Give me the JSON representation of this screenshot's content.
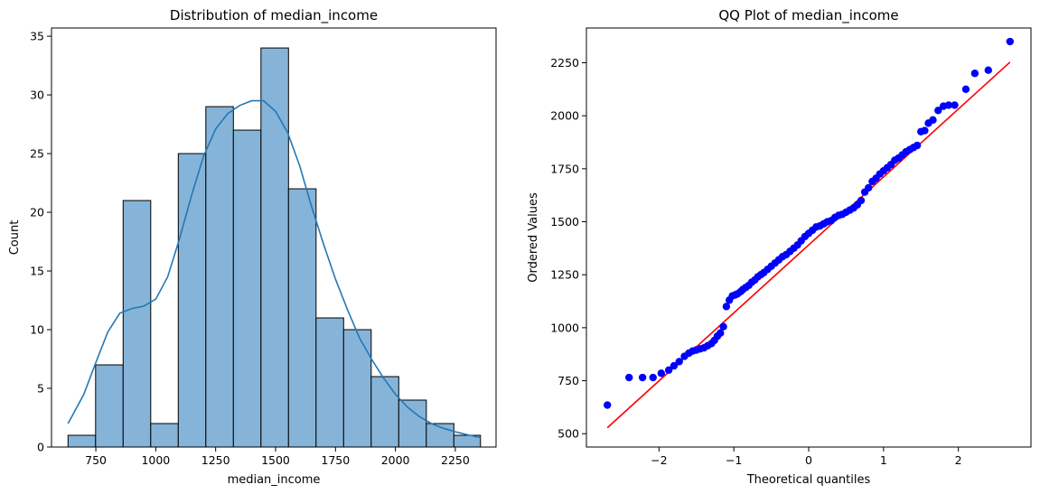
{
  "chart_data": [
    {
      "type": "bar",
      "title": "Distribution of median_income",
      "xlabel": "median_income",
      "ylabel": "Count",
      "xlim": [
        565,
        2420
      ],
      "ylim": [
        0,
        35.7
      ],
      "xticks": [
        750,
        1000,
        1250,
        1500,
        1750,
        2000,
        2250
      ],
      "yticks": [
        0,
        5,
        10,
        15,
        20,
        25,
        30,
        35
      ],
      "bin_edges": [
        634,
        749,
        864,
        979,
        1094,
        1209,
        1324,
        1439,
        1554,
        1669,
        1784,
        1899,
        2014,
        2129,
        2244,
        2355
      ],
      "counts": [
        1,
        7,
        21,
        2,
        25,
        29,
        27,
        34,
        22,
        11,
        10,
        6,
        4,
        2,
        1
      ],
      "kde": {
        "x": [
          634,
          700,
          750,
          800,
          850,
          900,
          950,
          1000,
          1050,
          1100,
          1150,
          1200,
          1250,
          1300,
          1350,
          1400,
          1450,
          1500,
          1550,
          1600,
          1650,
          1700,
          1750,
          1800,
          1850,
          1900,
          1950,
          2000,
          2050,
          2100,
          2150,
          2200,
          2250,
          2300,
          2355
        ],
        "y": [
          2.0,
          4.5,
          7.2,
          9.8,
          11.4,
          11.8,
          12.0,
          12.6,
          14.5,
          17.8,
          21.5,
          24.8,
          27.1,
          28.4,
          29.1,
          29.5,
          29.5,
          28.6,
          26.8,
          24.0,
          20.5,
          17.3,
          14.3,
          11.7,
          9.3,
          7.5,
          5.9,
          4.5,
          3.4,
          2.6,
          2.0,
          1.6,
          1.3,
          1.05,
          0.8
        ]
      },
      "colors": {
        "bar_fill": "#86b4d8",
        "bar_edge": "#000000",
        "kde": "#2378b5"
      }
    },
    {
      "type": "scatter",
      "title": "QQ Plot of median_income",
      "xlabel": "Theoretical quantiles",
      "ylabel": "Ordered Values",
      "xlim": [
        -2.97,
        2.97
      ],
      "ylim": [
        437,
        2414
      ],
      "xticks": [
        -2,
        -1,
        0,
        1,
        2
      ],
      "yticks": [
        500,
        750,
        1000,
        1250,
        1500,
        1750,
        2000,
        2250
      ],
      "fit_line": {
        "x": [
          -2.69,
          2.69
        ],
        "y": [
          528,
          2253
        ]
      },
      "points": {
        "x": [
          -2.69,
          -2.4,
          -2.22,
          -2.08,
          -1.97,
          -1.87,
          -1.8,
          -1.73,
          -1.66,
          -1.6,
          -1.55,
          -1.5,
          -1.45,
          -1.4,
          -1.35,
          -1.3,
          -1.26,
          -1.22,
          -1.18,
          -1.14,
          -1.1,
          -1.06,
          -1.02,
          -0.98,
          -0.95,
          -0.91,
          -0.88,
          -0.84,
          -0.8,
          -0.76,
          -0.72,
          -0.68,
          -0.64,
          -0.6,
          -0.55,
          -0.5,
          -0.45,
          -0.4,
          -0.35,
          -0.3,
          -0.25,
          -0.2,
          -0.15,
          -0.1,
          -0.05,
          0.0,
          0.05,
          0.1,
          0.15,
          0.2,
          0.25,
          0.3,
          0.35,
          0.4,
          0.45,
          0.5,
          0.55,
          0.6,
          0.65,
          0.7,
          0.75,
          0.8,
          0.85,
          0.9,
          0.95,
          1.0,
          1.05,
          1.1,
          1.15,
          1.2,
          1.25,
          1.3,
          1.35,
          1.4,
          1.45,
          1.5,
          1.55,
          1.6,
          1.66,
          1.73,
          1.8,
          1.87,
          1.95,
          2.1,
          2.22,
          2.4,
          2.69
        ],
        "y": [
          635,
          765,
          765,
          765,
          785,
          800,
          820,
          840,
          865,
          880,
          890,
          895,
          900,
          905,
          915,
          925,
          940,
          960,
          975,
          1005,
          1100,
          1130,
          1150,
          1155,
          1160,
          1170,
          1180,
          1190,
          1200,
          1215,
          1225,
          1240,
          1250,
          1260,
          1275,
          1290,
          1305,
          1320,
          1335,
          1345,
          1360,
          1375,
          1390,
          1410,
          1430,
          1445,
          1460,
          1475,
          1480,
          1490,
          1500,
          1505,
          1520,
          1530,
          1535,
          1545,
          1555,
          1565,
          1580,
          1600,
          1640,
          1660,
          1690,
          1705,
          1725,
          1740,
          1755,
          1770,
          1790,
          1800,
          1815,
          1830,
          1840,
          1850,
          1860,
          1925,
          1930,
          1965,
          1980,
          2025,
          2045,
          2050,
          2050,
          2125,
          2200,
          2215,
          2350
        ]
      },
      "colors": {
        "points": "#0000ff",
        "line": "#ff0000"
      }
    }
  ]
}
